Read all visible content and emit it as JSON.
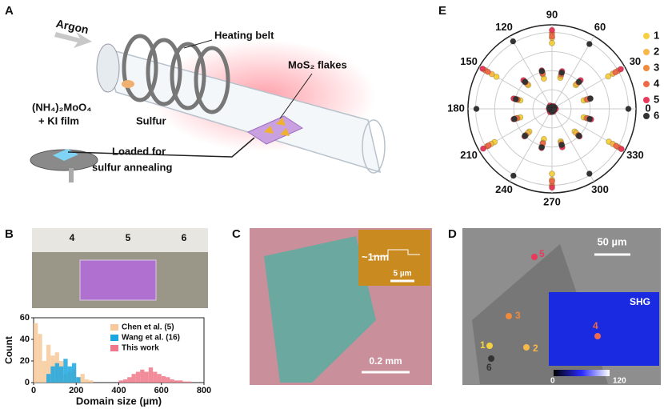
{
  "panel_a": {
    "label": "A",
    "argon": "Argon",
    "heating_belt": "Heating belt",
    "flakes": "MoS₂ flakes",
    "precursor": "(NH₄)₂MoO₄",
    "film": "+ KI film",
    "sulfur": "Sulfur",
    "loaded_1": "Loaded for",
    "loaded_2": "sulfur annealing"
  },
  "panel_b": {
    "label": "B",
    "ruler_labels": [
      "4",
      "5",
      "6"
    ]
  },
  "panel_c": {
    "label": "C",
    "height": "~1nm",
    "inset_scale": "5 µm",
    "scale": "0.2 mm"
  },
  "panel_d": {
    "label": "D",
    "scale": "50 µm",
    "inset": "SHG",
    "markers": [
      "1",
      "2",
      "3",
      "4",
      "5",
      "6"
    ],
    "colorbar": [
      "0",
      "120"
    ]
  },
  "panel_e": {
    "label": "E"
  },
  "chart_data": [
    {
      "type": "histogram",
      "xlabel": "Domain size (µm)",
      "ylabel": "Count",
      "xlim": [
        0,
        800
      ],
      "xticks": [
        0,
        200,
        400,
        600,
        800
      ],
      "ylim": [
        0,
        60
      ],
      "yticks": [
        0,
        20,
        40,
        60
      ],
      "series": [
        {
          "name": "Chen et al. (5)",
          "color": "#f7c99a",
          "bins": [
            0,
            20,
            40,
            60,
            80,
            100,
            120,
            140,
            160,
            180,
            200,
            220,
            240,
            260,
            280
          ],
          "values": [
            55,
            45,
            20,
            35,
            25,
            28,
            20,
            8,
            10,
            12,
            5,
            8,
            3,
            2
          ]
        },
        {
          "name": "Wang et al. (16)",
          "color": "#1aa7e0",
          "bins": [
            60,
            80,
            100,
            120,
            140,
            160,
            180,
            200,
            220
          ],
          "values": [
            8,
            15,
            18,
            15,
            22,
            15,
            18,
            5
          ]
        },
        {
          "name": "This work",
          "color": "#f0788a",
          "bins": [
            400,
            420,
            440,
            460,
            480,
            500,
            520,
            540,
            560,
            580,
            600,
            620,
            640,
            660,
            680,
            700,
            720,
            740
          ],
          "values": [
            2,
            3,
            5,
            8,
            10,
            12,
            10,
            14,
            10,
            8,
            6,
            5,
            3,
            2,
            2,
            1,
            1
          ]
        }
      ]
    },
    {
      "type": "polar",
      "angle_ticks": [
        0,
        30,
        60,
        90,
        120,
        150,
        180,
        210,
        240,
        270,
        300,
        330
      ],
      "rlim": [
        0,
        1.1
      ],
      "rticks": [
        0.25,
        0.5,
        0.75,
        1
      ],
      "x": [
        0,
        15,
        30,
        45,
        60,
        75,
        90,
        105,
        120,
        135,
        150,
        165,
        180,
        195,
        210,
        225,
        240,
        255,
        270,
        285,
        300,
        315,
        330,
        345
      ],
      "series": [
        {
          "name": "1",
          "color": "#f5d040",
          "values": [
            0.02,
            0.43,
            0.85,
            0.44,
            0.03,
            0.42,
            0.86,
            0.41,
            0.02,
            0.44,
            0.84,
            0.43,
            0.03,
            0.43,
            0.87,
            0.42,
            0.02,
            0.41,
            0.85,
            0.44,
            0.03,
            0.42,
            0.86,
            0.43
          ]
        },
        {
          "name": "2",
          "color": "#f7b84a",
          "values": [
            0.03,
            0.47,
            0.92,
            0.46,
            0.02,
            0.45,
            0.93,
            0.47,
            0.03,
            0.46,
            0.91,
            0.47,
            0.02,
            0.47,
            0.92,
            0.45,
            0.03,
            0.46,
            0.93,
            0.46,
            0.02,
            0.45,
            0.92,
            0.47
          ]
        },
        {
          "name": "3",
          "color": "#f08a3c",
          "values": [
            0.04,
            0.5,
            1.0,
            0.51,
            0.03,
            0.49,
            0.99,
            0.5,
            0.04,
            0.52,
            1.01,
            0.5,
            0.03,
            0.5,
            0.98,
            0.49,
            0.04,
            0.51,
            1.0,
            0.5,
            0.03,
            0.49,
            1.01,
            0.52
          ]
        },
        {
          "name": "4",
          "color": "#ef6a4a",
          "values": [
            0.03,
            0.48,
            0.96,
            0.49,
            0.04,
            0.47,
            0.95,
            0.48,
            0.03,
            0.49,
            0.97,
            0.47,
            0.04,
            0.48,
            0.96,
            0.49,
            0.03,
            0.47,
            0.95,
            0.48,
            0.04,
            0.49,
            0.97,
            0.48
          ]
        },
        {
          "name": "5",
          "color": "#e83a5a",
          "values": [
            0.05,
            0.52,
            1.04,
            0.53,
            0.04,
            0.51,
            1.03,
            0.52,
            0.05,
            0.53,
            1.05,
            0.52,
            0.04,
            0.52,
            1.04,
            0.51,
            0.05,
            0.53,
            1.03,
            0.52,
            0.04,
            0.51,
            1.05,
            0.53
          ]
        },
        {
          "name": "6",
          "color": "#333333",
          "values": [
            1.0,
            0.52,
            0.04,
            0.5,
            0.98,
            0.49,
            0.03,
            0.51,
            1.02,
            0.5,
            0.04,
            0.49,
            0.99,
            0.51,
            0.03,
            0.5,
            1.01,
            0.52,
            0.04,
            0.49,
            0.98,
            0.5,
            0.03,
            0.51
          ]
        }
      ]
    }
  ]
}
